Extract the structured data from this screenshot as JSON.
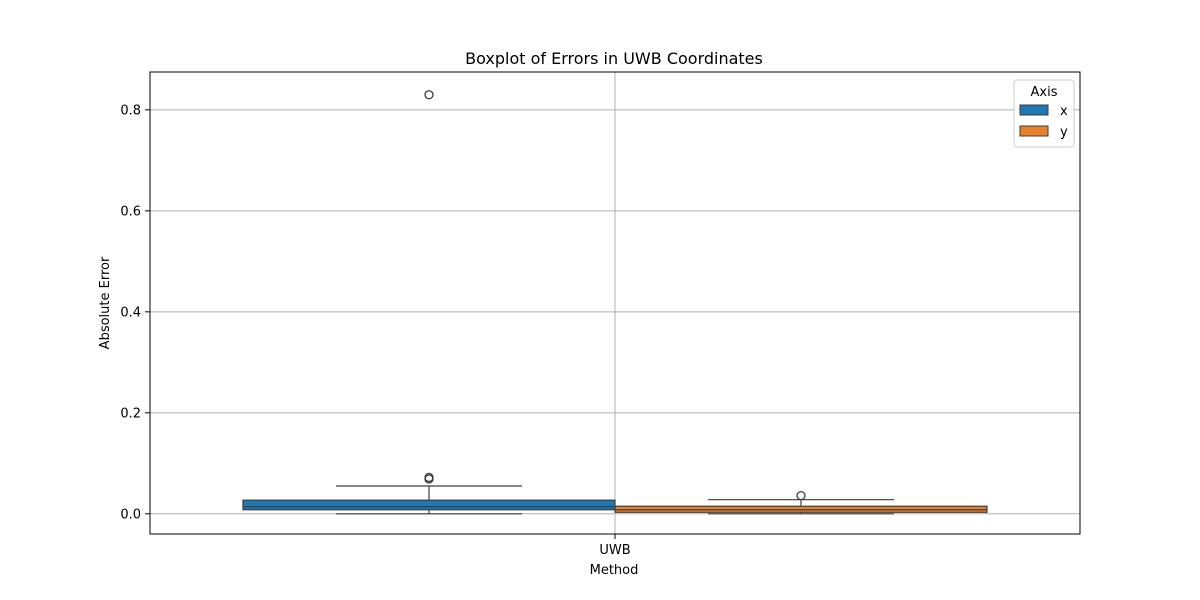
{
  "chart_data": {
    "type": "box",
    "title": "Boxplot of Errors in UWB Coordinates",
    "xlabel": "Method",
    "ylabel": "Absolute Error",
    "categories": [
      "UWB"
    ],
    "ylim": [
      -0.04,
      0.875
    ],
    "yticks": [
      0.0,
      0.2,
      0.4,
      0.6,
      0.8
    ],
    "yticklabels": [
      "0.0",
      "0.2",
      "0.4",
      "0.6",
      "0.8"
    ],
    "grid": true,
    "legend": {
      "title": "Axis",
      "placement": "top-right"
    },
    "series": [
      {
        "name": "x",
        "color": "#1f77b4",
        "whisker_low": 0.0,
        "q1": 0.008,
        "median": 0.014,
        "q3": 0.027,
        "whisker_high": 0.055,
        "outliers": [
          0.069,
          0.072,
          0.83
        ]
      },
      {
        "name": "y",
        "color": "#e8822a",
        "whisker_low": 0.0,
        "q1": 0.003,
        "median": 0.008,
        "q3": 0.015,
        "whisker_high": 0.028,
        "outliers": [
          0.036
        ]
      }
    ]
  }
}
